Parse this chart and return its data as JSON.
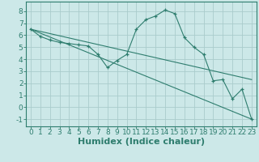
{
  "title": "",
  "xlabel": "Humidex (Indice chaleur)",
  "x_ticks": [
    0,
    1,
    2,
    3,
    4,
    5,
    6,
    7,
    8,
    9,
    10,
    11,
    12,
    13,
    14,
    15,
    16,
    17,
    18,
    19,
    20,
    21,
    22,
    23
  ],
  "y_ticks": [
    -1,
    0,
    1,
    2,
    3,
    4,
    5,
    6,
    7,
    8
  ],
  "xlim": [
    -0.5,
    23.5
  ],
  "ylim": [
    -1.6,
    8.8
  ],
  "line1_x": [
    0,
    1,
    2,
    3,
    4,
    5,
    6,
    7,
    8,
    9,
    10,
    11,
    12,
    13,
    14,
    15,
    16,
    17,
    18,
    19,
    20,
    21,
    22,
    23
  ],
  "line1_y": [
    6.5,
    5.9,
    5.6,
    5.4,
    5.3,
    5.2,
    5.1,
    4.4,
    3.3,
    3.9,
    4.4,
    6.5,
    7.3,
    7.6,
    8.1,
    7.8,
    5.8,
    5.0,
    4.4,
    2.2,
    2.3,
    0.7,
    1.5,
    -1.0
  ],
  "line2_x": [
    0,
    23
  ],
  "line2_y": [
    6.5,
    -1.0
  ],
  "line3_x": [
    0,
    23
  ],
  "line3_y": [
    6.5,
    2.3
  ],
  "bg_color": "#cce8e8",
  "grid_color": "#aacccc",
  "line_color": "#2e7d6e",
  "tick_fontsize": 6.5,
  "label_fontsize": 8
}
